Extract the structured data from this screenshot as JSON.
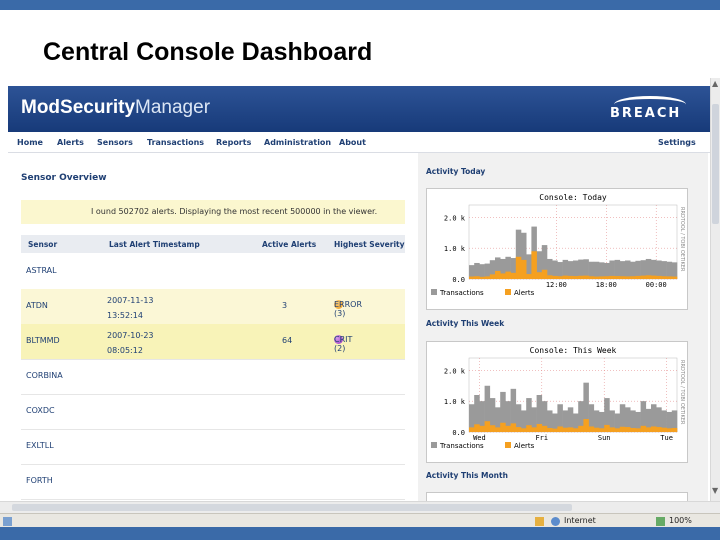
{
  "slide": {
    "title": "Central Console Dashboard"
  },
  "app": {
    "logo_bold": "ModSecurity",
    "logo_light": "Manager",
    "brand": "BREACH",
    "nav": [
      "Home",
      "Alerts",
      "Sensors",
      "Transactions",
      "Reports",
      "Administration",
      "About"
    ],
    "nav_right": "Settings"
  },
  "sensor_overview": {
    "title": "Sensor Overview",
    "note": "I ound 502702 alerts. Displaying the most recent 500000 in the viewer.",
    "columns": [
      "Sensor",
      "Last Alert Timestamp",
      "Active Alerts",
      "Highest Severity"
    ],
    "rows": [
      {
        "name": "ASTRAL",
        "ts1": "",
        "ts2": "",
        "active": "",
        "severity": "",
        "icon": ""
      },
      {
        "name": "ATDN",
        "ts1": "2007-11-13",
        "ts2": "13:52:14",
        "active": "3",
        "severity": "ERROR (3)",
        "icon": "orange"
      },
      {
        "name": "BLTMMD",
        "ts1": "2007-10-23",
        "ts2": "08:05:12",
        "active": "64",
        "severity": "CRIT (2)",
        "icon": "purple"
      },
      {
        "name": "CORBINA",
        "ts1": "",
        "ts2": "",
        "active": "",
        "severity": "",
        "icon": ""
      },
      {
        "name": "COXDC",
        "ts1": "",
        "ts2": "",
        "active": "",
        "severity": "",
        "icon": ""
      },
      {
        "name": "EXLTLL",
        "ts1": "",
        "ts2": "",
        "active": "",
        "severity": "",
        "icon": ""
      },
      {
        "name": "FORTH",
        "ts1": "",
        "ts2": "",
        "active": "",
        "severity": "",
        "icon": ""
      }
    ]
  },
  "activity": {
    "today_title": "Activity Today",
    "week_title": "Activity This Week",
    "month_title": "Activity This Month"
  },
  "chart_data": [
    {
      "type": "area",
      "title": "Console: Today",
      "y_ticks": [
        "2.0 k",
        "1.0 k",
        "0.0"
      ],
      "x_ticks": [
        "12:00",
        "18:00",
        "00:00"
      ],
      "ylim": [
        0,
        2400
      ],
      "side_label": "RRDTOOL / TOBI OETIKER",
      "legend": [
        "Transactions",
        "Alerts"
      ],
      "colors": {
        "transactions": "#9a9a9a",
        "alerts": "#f5a020"
      },
      "series": [
        {
          "name": "Transactions",
          "values": [
            450,
            520,
            480,
            500,
            610,
            700,
            650,
            720,
            680,
            1600,
            1500,
            800,
            1700,
            900,
            1100,
            650,
            600,
            550,
            620,
            580,
            600,
            630,
            640,
            560,
            560,
            540,
            520,
            600,
            620,
            580,
            600,
            560,
            590,
            610,
            650,
            620,
            600,
            580,
            560,
            540
          ]
        },
        {
          "name": "Alerts",
          "values": [
            80,
            90,
            70,
            85,
            150,
            260,
            180,
            240,
            200,
            720,
            620,
            160,
            900,
            220,
            300,
            120,
            100,
            90,
            110,
            100,
            95,
            105,
            110,
            90,
            80,
            85,
            90,
            100,
            95,
            90,
            85,
            90,
            100,
            110,
            120,
            110,
            100,
            90,
            85,
            80
          ]
        }
      ]
    },
    {
      "type": "area",
      "title": "Console: This Week",
      "y_ticks": [
        "2.0 k",
        "1.0 k",
        "0.0"
      ],
      "x_ticks": [
        "Wed",
        "Fri",
        "Sun",
        "Tue"
      ],
      "ylim": [
        0,
        2400
      ],
      "side_label": "RRDTOOL / TOBI OETIKER",
      "legend": [
        "Transactions",
        "Alerts"
      ],
      "colors": {
        "transactions": "#9a9a9a",
        "alerts": "#f5a020"
      },
      "series": [
        {
          "name": "Transactions",
          "values": [
            900,
            1200,
            1000,
            1500,
            1100,
            800,
            1300,
            1000,
            1400,
            900,
            700,
            1100,
            800,
            1200,
            1000,
            700,
            600,
            900,
            700,
            800,
            600,
            1000,
            1600,
            900,
            700,
            650,
            1100,
            700,
            600,
            900,
            800,
            700,
            650,
            1000,
            750,
            900,
            800,
            700,
            650,
            700
          ]
        },
        {
          "name": "Alerts",
          "values": [
            150,
            250,
            200,
            350,
            220,
            150,
            300,
            200,
            280,
            160,
            120,
            220,
            150,
            260,
            200,
            130,
            110,
            180,
            140,
            150,
            120,
            200,
            420,
            180,
            140,
            120,
            230,
            150,
            120,
            170,
            160,
            130,
            120,
            200,
            150,
            180,
            160,
            140,
            120,
            130
          ]
        }
      ]
    }
  ],
  "status": {
    "zone": "Internet",
    "zoom": "100%"
  }
}
